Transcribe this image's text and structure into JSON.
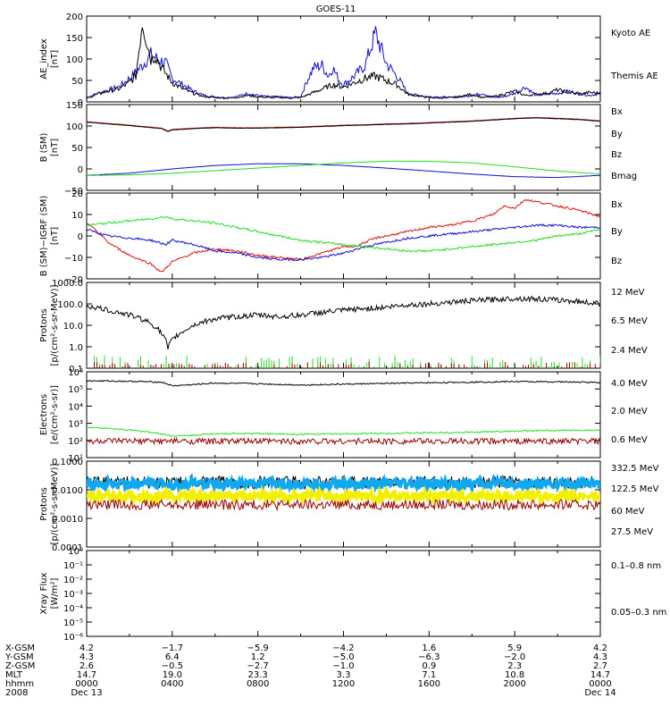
{
  "title": "GOES-11",
  "colors": {
    "black": "#000000",
    "blue": "#1010d0",
    "green": "#22dd22",
    "red": "#dd1111",
    "darkred": "#990000",
    "cyan": "#10a8f0",
    "yellow": "#f2ef00"
  },
  "chart_data": [
    {
      "type": "line",
      "panel": "ae",
      "ylabel": [
        "AE_index",
        "[nT]"
      ],
      "ylim": [
        0,
        200
      ],
      "yticks": [
        "200",
        "150",
        "100",
        "50",
        "0"
      ],
      "ytick_values": [
        200,
        150,
        100,
        50,
        0
      ],
      "legend": [
        {
          "text": "Kyoto AE",
          "color": "blue"
        },
        {
          "text": "Themis AE",
          "color": "black"
        }
      ],
      "series": [
        {
          "name": "Kyoto AE",
          "color": "blue",
          "x": [
            0,
            0.5,
            1,
            1.5,
            2,
            2.3,
            2.6,
            3,
            3.3,
            3.7,
            4,
            4.5,
            5,
            5.5,
            6,
            6.5,
            7,
            7.5,
            8,
            8.5,
            9,
            9.5,
            10,
            10.3,
            10.6,
            11,
            11.3,
            11.5,
            11.8,
            12,
            12.5,
            13,
            13.5,
            14,
            14.5,
            15,
            15.5,
            16,
            16.5,
            17,
            17.5,
            18,
            18.5,
            19,
            19.5,
            20,
            20.5,
            21,
            21.5,
            22,
            22.5,
            23,
            23.5,
            24
          ],
          "values": [
            10,
            20,
            28,
            35,
            55,
            70,
            85,
            110,
            100,
            90,
            55,
            40,
            25,
            15,
            12,
            10,
            12,
            20,
            15,
            12,
            12,
            10,
            12,
            50,
            80,
            85,
            60,
            80,
            50,
            40,
            60,
            85,
            160,
            90,
            60,
            20,
            15,
            12,
            12,
            10,
            12,
            15,
            20,
            10,
            12,
            20,
            35,
            15,
            18,
            20,
            25,
            20,
            15,
            20
          ]
        },
        {
          "name": "Themis AE",
          "color": "black",
          "x": [
            0,
            0.5,
            1,
            1.5,
            2,
            2.3,
            2.6,
            3,
            3.2,
            3.5,
            4,
            4.5,
            5,
            5.5,
            6,
            6.5,
            7,
            7.5,
            8,
            8.5,
            9,
            9.5,
            10,
            10.5,
            11,
            11.5,
            12,
            12.5,
            13,
            13.5,
            14,
            14.5,
            15,
            15.5,
            16,
            16.5,
            17,
            17.5,
            18,
            18.5,
            19,
            19.5,
            20,
            20.5,
            21,
            21.5,
            22,
            22.5,
            23,
            23.5,
            24
          ],
          "values": [
            8,
            18,
            25,
            30,
            45,
            60,
            190,
            100,
            110,
            80,
            45,
            30,
            20,
            12,
            10,
            9,
            10,
            15,
            12,
            10,
            10,
            9,
            10,
            20,
            30,
            40,
            35,
            45,
            55,
            60,
            50,
            40,
            18,
            14,
            10,
            9,
            10,
            13,
            18,
            10,
            12,
            18,
            25,
            15,
            18,
            20,
            28,
            22,
            18,
            22,
            20
          ]
        }
      ]
    },
    {
      "type": "line",
      "panel": "bsm",
      "ylabel": [
        "B (SM)",
        "[nT]"
      ],
      "ylim": [
        -50,
        150
      ],
      "yticks": [
        "150",
        "100",
        "50",
        "0",
        "−50"
      ],
      "ytick_values": [
        150,
        100,
        50,
        0,
        -50
      ],
      "legend": [
        {
          "text": "Bx",
          "color": "blue"
        },
        {
          "text": "By",
          "color": "green"
        },
        {
          "text": "Bz",
          "color": "red"
        },
        {
          "text": "Bmag",
          "color": "black"
        }
      ],
      "series": [
        {
          "name": "Bz",
          "color": "red",
          "x": [
            0,
            2,
            3.5,
            3.8,
            4,
            5,
            6,
            7,
            8,
            9,
            10,
            11,
            12,
            13,
            14,
            15,
            16,
            17,
            18,
            19,
            20,
            21,
            22,
            23,
            24
          ],
          "values": [
            110,
            102,
            95,
            88,
            92,
            95,
            97,
            96,
            96,
            97,
            98,
            100,
            102,
            103,
            105,
            106,
            108,
            110,
            112,
            115,
            118,
            120,
            118,
            116,
            112
          ]
        },
        {
          "name": "Bmag",
          "color": "black",
          "x": [
            0,
            2,
            3.5,
            3.8,
            4,
            5,
            6,
            7,
            8,
            9,
            10,
            11,
            12,
            13,
            14,
            15,
            16,
            17,
            18,
            19,
            20,
            21,
            22,
            23,
            24
          ],
          "values": [
            109,
            101,
            94,
            87,
            91,
            94,
            96,
            95,
            95,
            96,
            97,
            99,
            101,
            102,
            104,
            105,
            107,
            109,
            111,
            114,
            117,
            119,
            117,
            115,
            111
          ]
        },
        {
          "name": "Bx",
          "color": "blue",
          "x": [
            0,
            2,
            4,
            6,
            8,
            10,
            12,
            14,
            16,
            18,
            20,
            22,
            24
          ],
          "values": [
            -15,
            -10,
            0,
            8,
            12,
            12,
            8,
            2,
            -5,
            -12,
            -18,
            -20,
            -15
          ]
        },
        {
          "name": "By",
          "color": "green",
          "x": [
            0,
            2,
            4,
            6,
            8,
            10,
            12,
            14,
            16,
            18,
            20,
            22,
            24
          ],
          "values": [
            -15,
            -14,
            -10,
            -4,
            2,
            8,
            14,
            18,
            18,
            14,
            5,
            -5,
            -12
          ]
        }
      ]
    },
    {
      "type": "line",
      "panel": "bigrf",
      "ylabel": [
        "B (SM)−IGRF (SM)",
        "[nT]"
      ],
      "ylim": [
        -20,
        20
      ],
      "yticks": [
        "20",
        "10",
        "0",
        "−10",
        "−20"
      ],
      "ytick_values": [
        20,
        10,
        0,
        -10,
        -20
      ],
      "legend": [
        {
          "text": "Bx",
          "color": "blue"
        },
        {
          "text": "By",
          "color": "green"
        },
        {
          "text": "Bz",
          "color": "red"
        }
      ],
      "series": [
        {
          "name": "Bz",
          "color": "red",
          "x": [
            0,
            0.5,
            1,
            2,
            3,
            3.5,
            4,
            4.5,
            5,
            6,
            7,
            8,
            9,
            10,
            11,
            12,
            12.5,
            13,
            13.5,
            14,
            15,
            16,
            17,
            18,
            19,
            19.5,
            20,
            20.5,
            21,
            22,
            23,
            24
          ],
          "values": [
            6,
            2,
            -3,
            -9,
            -13,
            -17,
            -12,
            -10,
            -8,
            -6,
            -7,
            -9,
            -10,
            -11,
            -8,
            -5,
            -5,
            -3,
            -1,
            0,
            2,
            4,
            5,
            7,
            10,
            14,
            13,
            17,
            16,
            14,
            12,
            9
          ]
        },
        {
          "name": "Bx",
          "color": "blue",
          "x": [
            0,
            1,
            2,
            3,
            3.7,
            4,
            5,
            6,
            7,
            8,
            9,
            10,
            11,
            12,
            13,
            14,
            15,
            16,
            17,
            18,
            19,
            20,
            21,
            22,
            23,
            24
          ],
          "values": [
            3,
            0,
            -1,
            -2,
            -4,
            -2,
            -4,
            -7,
            -8,
            -10,
            -11,
            -11,
            -10,
            -8,
            -5,
            -3,
            -1,
            0,
            1,
            2,
            3,
            4,
            5,
            5,
            4,
            4
          ]
        },
        {
          "name": "By",
          "color": "green",
          "x": [
            0,
            1,
            2,
            3,
            3.7,
            4,
            5,
            6,
            7,
            8,
            9,
            10,
            11,
            12,
            13,
            14,
            15,
            16,
            17,
            18,
            19,
            20,
            21,
            22,
            23,
            24
          ],
          "values": [
            5,
            6,
            7,
            8,
            9,
            8,
            7,
            6,
            4,
            2,
            0,
            -2,
            -3,
            -4,
            -5,
            -6,
            -7,
            -7,
            -6,
            -5,
            -4,
            -3,
            -2,
            0,
            1,
            3
          ]
        }
      ]
    },
    {
      "type": "line",
      "panel": "protons_low",
      "yscale": "log",
      "ylabel": [
        "Protons",
        "[p/(cm²-s-sr-MeV)]"
      ],
      "ylim": [
        0.1,
        1000
      ],
      "yticks": [
        "1000.0",
        "100.0",
        "10.0",
        "1.0",
        "0.1"
      ],
      "ytick_values": [
        1000,
        100,
        10,
        1,
        0.1
      ],
      "legend": [
        {
          "text": "12 MeV",
          "color": "darkred"
        },
        {
          "text": "6.5 MeV",
          "color": "green"
        },
        {
          "text": "2.4 MeV",
          "color": "black"
        }
      ],
      "series": [
        {
          "name": "2.4 MeV",
          "color": "black",
          "x": [
            0,
            1,
            2,
            3,
            3.5,
            3.8,
            4,
            4.5,
            5,
            6,
            7,
            8,
            9,
            10,
            11,
            12,
            13,
            14,
            15,
            16,
            17,
            18,
            19,
            20,
            21,
            22,
            23,
            24
          ],
          "values": [
            80,
            50,
            30,
            12,
            4,
            0.8,
            2,
            5,
            10,
            20,
            25,
            30,
            25,
            30,
            40,
            50,
            60,
            70,
            90,
            100,
            120,
            140,
            160,
            180,
            170,
            150,
            130,
            100
          ]
        },
        {
          "name": "6.5 MeV",
          "color": "green",
          "x": [
            0,
            24
          ],
          "values": [
            0.12,
            0.12
          ]
        },
        {
          "name": "12 MeV",
          "color": "darkred",
          "x": [
            0,
            24
          ],
          "values": [
            0.1,
            0.1
          ]
        }
      ]
    },
    {
      "type": "line",
      "panel": "electrons",
      "yscale": "log",
      "ylabel": [
        "Electrons",
        "[e/(cm²-s-sr)]"
      ],
      "ylim": [
        10,
        1000000
      ],
      "yticks": [
        "10⁶",
        "10⁵",
        "10⁴",
        "10³",
        "10²",
        "10¹"
      ],
      "ytick_values": [
        1000000,
        100000,
        10000,
        1000,
        100,
        10
      ],
      "legend": [
        {
          "text": "4.0 MeV",
          "color": "darkred"
        },
        {
          "text": "2.0 MeV",
          "color": "green"
        },
        {
          "text": "0.6 MeV",
          "color": "black"
        }
      ],
      "series": [
        {
          "name": "0.6 MeV",
          "color": "black",
          "x": [
            0,
            2,
            3.5,
            4,
            5,
            6,
            8,
            10,
            12,
            14,
            16,
            18,
            20,
            22,
            24
          ],
          "values": [
            300000,
            280000,
            250000,
            150000,
            180000,
            220000,
            200000,
            170000,
            190000,
            210000,
            230000,
            250000,
            270000,
            260000,
            240000
          ]
        },
        {
          "name": "2.0 MeV",
          "color": "green",
          "x": [
            0,
            1,
            2,
            3,
            4,
            5,
            6,
            8,
            10,
            12,
            14,
            16,
            18,
            20,
            22,
            24
          ],
          "values": [
            600,
            500,
            400,
            300,
            180,
            200,
            250,
            250,
            230,
            240,
            260,
            280,
            300,
            350,
            380,
            400
          ]
        },
        {
          "name": "4.0 MeV",
          "color": "darkred",
          "x": [
            0,
            24
          ],
          "values": [
            90,
            90
          ]
        }
      ]
    },
    {
      "type": "line",
      "panel": "protons_high",
      "yscale": "log",
      "ylabel": [
        "Protons",
        "[p/(cm²-s-sr-MeV)]"
      ],
      "ylim": [
        0.0001,
        0.1
      ],
      "yticks": [
        "0.1000",
        "0.0100",
        "0.0010",
        "0.0001"
      ],
      "ytick_values": [
        0.1,
        0.01,
        0.001,
        0.0001
      ],
      "legend": [
        {
          "text": "332.5 MeV",
          "color": "darkred"
        },
        {
          "text": "122.5 MeV",
          "color": "yellow"
        },
        {
          "text": "60 MeV",
          "color": "cyan"
        },
        {
          "text": "27.5 MeV",
          "color": "black"
        }
      ],
      "series": [
        {
          "name": "27.5 MeV",
          "color": "black",
          "x": [
            0,
            24
          ],
          "values": [
            0.018,
            0.018
          ]
        },
        {
          "name": "60 MeV",
          "color": "cyan",
          "x": [
            0,
            24
          ],
          "values": [
            0.016,
            0.016
          ]
        },
        {
          "name": "122.5 MeV",
          "color": "yellow",
          "x": [
            0,
            24
          ],
          "values": [
            0.006,
            0.006
          ]
        },
        {
          "name": "332.5 MeV",
          "color": "darkred",
          "x": [
            0,
            24
          ],
          "values": [
            0.003,
            0.003
          ]
        }
      ]
    },
    {
      "type": "line",
      "panel": "xray",
      "yscale": "log",
      "ylabel": [
        "Xray Flux",
        "[W/m²]"
      ],
      "ylim": [
        1e-06,
        1
      ],
      "yticks": [
        "10⁰",
        "10⁻¹",
        "10⁻²",
        "10⁻³",
        "10⁻⁴",
        "10⁻⁵",
        "10⁻⁶"
      ],
      "ytick_values": [
        1,
        0.1,
        0.01,
        0.001,
        0.0001,
        1e-05,
        1e-06
      ],
      "legend": [
        {
          "text": "0.1–0.8 nm",
          "color": "darkred"
        },
        {
          "text": "0.05–0.3 nm",
          "color": "blue"
        }
      ],
      "series": []
    }
  ],
  "footer": {
    "labels": [
      "X-GSM",
      "Y-GSM",
      "Z-GSM",
      "MLT",
      "hhmm",
      "2008"
    ],
    "columns": [
      {
        "hour": 0,
        "values": [
          "4.2",
          "4.3",
          "2.6",
          "14.7",
          "0000",
          "Dec 13"
        ]
      },
      {
        "hour": 4,
        "values": [
          "−1.7",
          "6.4",
          "−0.5",
          "19.0",
          "0400",
          ""
        ]
      },
      {
        "hour": 8,
        "values": [
          "−5.9",
          "1.2",
          "−2.7",
          "23.3",
          "0800",
          ""
        ]
      },
      {
        "hour": 12,
        "values": [
          "−4.2",
          "−5.0",
          "−1.0",
          "3.3",
          "1200",
          ""
        ]
      },
      {
        "hour": 16,
        "values": [
          "1.6",
          "−6.3",
          "0.9",
          "7.1",
          "1600",
          ""
        ]
      },
      {
        "hour": 20,
        "values": [
          "5.9",
          "−2.0",
          "2.3",
          "10.8",
          "2000",
          ""
        ]
      },
      {
        "hour": 24,
        "values": [
          "4.2",
          "4.3",
          "2.7",
          "14.7",
          "0000",
          "Dec 14"
        ]
      }
    ]
  }
}
